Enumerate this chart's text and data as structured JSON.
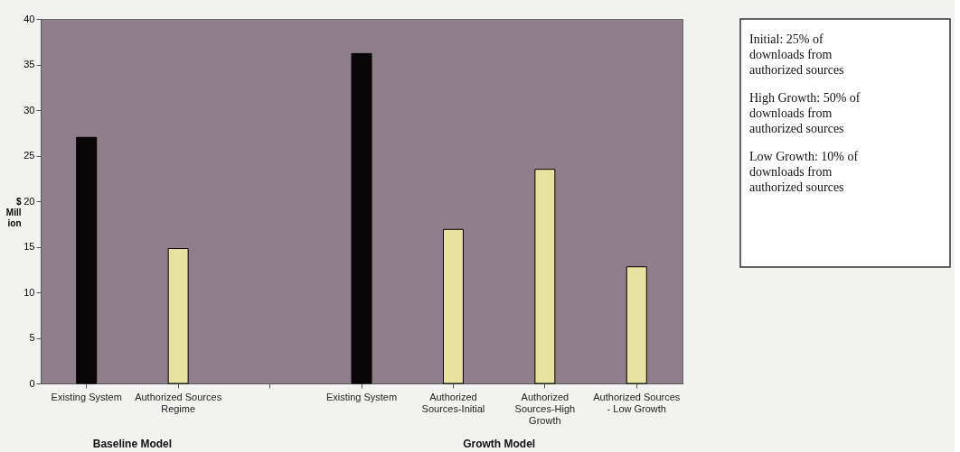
{
  "chart_data": {
    "type": "bar",
    "ylabel": "$ Mill ion",
    "categories": [
      "Existing System",
      "Authorized Sources Regime",
      null,
      "Existing System",
      "Authorized Sources-Initial",
      "Authorized Sources-High Growth",
      "Authorized Sources - Low Growth"
    ],
    "values": [
      27.0,
      14.8,
      null,
      36.2,
      16.9,
      23.5,
      12.8
    ],
    "colors": [
      "#0a0608",
      "#e8e2a0",
      null,
      "#0a0608",
      "#e8e2a0",
      "#e8e2a0",
      "#e8e2a0"
    ],
    "ylim": [
      0,
      40
    ],
    "yticks": [
      0,
      5,
      10,
      15,
      20,
      25,
      30,
      35,
      40
    ],
    "grid": false,
    "annotations": [
      "Baseline Model",
      "Growth Model",
      "Initial: 25% of downloads from authorized sources",
      "High Growth: 50% of downloads from authorized sources",
      "Low Growth: 10% of downloads from authorized sources"
    ]
  }
}
